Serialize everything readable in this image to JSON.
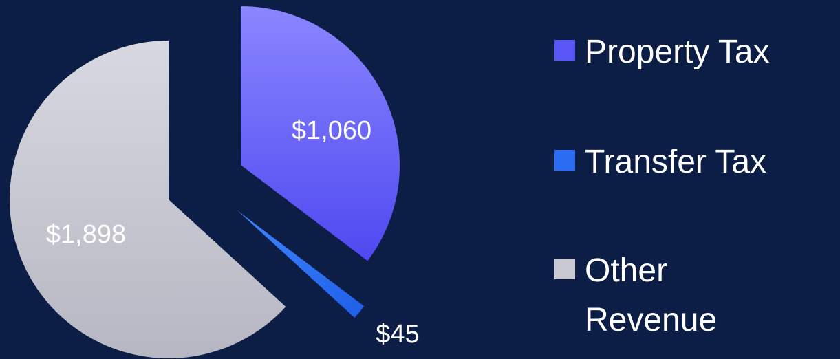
{
  "chart_data": {
    "type": "pie",
    "categories": [
      "Property Tax",
      "Transfer Tax",
      "Other Revenue"
    ],
    "values": [
      1060,
      45,
      1898
    ],
    "value_labels": [
      "$1,060",
      "$45",
      "$1,898"
    ],
    "colors": [
      "#5a55f5",
      "#2a6cf2",
      "#c9c9d3"
    ],
    "legend": "right"
  }
}
